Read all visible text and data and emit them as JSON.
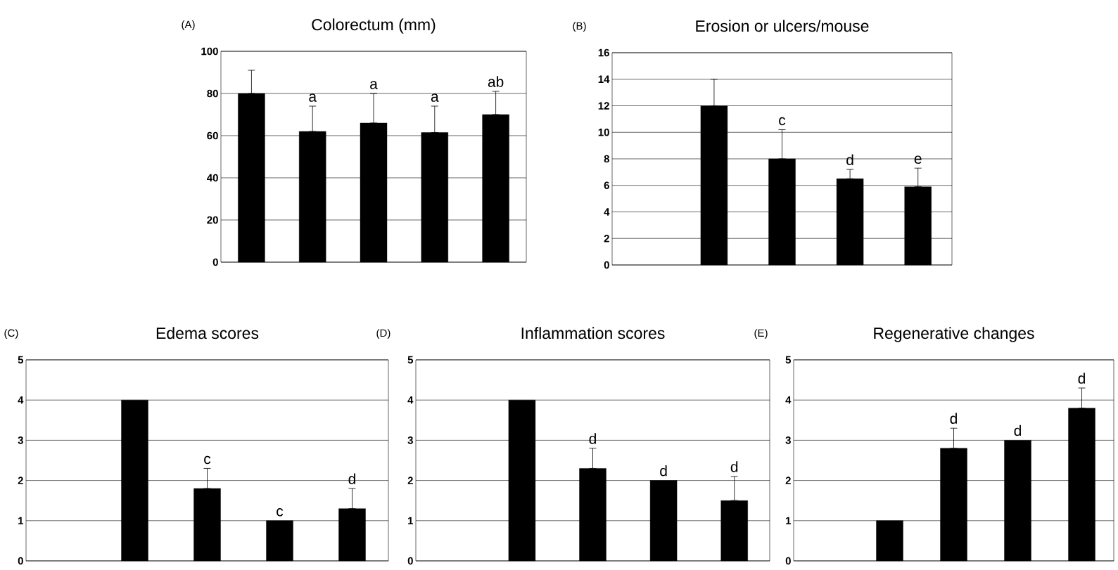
{
  "chart_data": [
    {
      "type": "bar",
      "title": "Colorectum (mm)",
      "annotations": [
        "(A)"
      ],
      "categories": [
        null,
        null,
        null,
        null,
        null
      ],
      "values": [
        80,
        62,
        66,
        61.5,
        70
      ],
      "errors": [
        [
          80,
          91
        ],
        [
          62,
          74
        ],
        [
          66,
          80
        ],
        [
          61.5,
          74
        ],
        [
          70,
          81
        ]
      ],
      "value_labels": [
        null,
        "a",
        "a",
        "a",
        "ab"
      ],
      "color": "#000000",
      "ylim": [
        0,
        100
      ],
      "yticks": [
        0,
        20,
        40,
        60,
        80,
        100
      ],
      "grid": "y"
    },
    {
      "type": "bar",
      "title": "Erosion or ulcers/mouse",
      "annotations": [
        "(B)"
      ],
      "categories": [
        null,
        null,
        null,
        null,
        null
      ],
      "values": [
        null,
        12,
        8,
        6.5,
        5.9
      ],
      "errors": [
        null,
        [
          12,
          14
        ],
        [
          8,
          10.2
        ],
        [
          6.5,
          7.2
        ],
        [
          5.9,
          7.3
        ]
      ],
      "value_labels": [
        null,
        null,
        "c",
        "d",
        "e"
      ],
      "color": "#000000",
      "ylim": [
        0,
        16
      ],
      "yticks": [
        0,
        2,
        4,
        6,
        8,
        10,
        12,
        14,
        16
      ],
      "grid": "y"
    },
    {
      "type": "bar",
      "title": "Edema scores",
      "annotations": [
        "(C)"
      ],
      "categories": [
        null,
        null,
        null,
        null,
        null
      ],
      "values": [
        null,
        4,
        1.8,
        1,
        1.3
      ],
      "errors": [
        null,
        null,
        [
          1.8,
          2.3
        ],
        null,
        [
          1.3,
          1.8
        ]
      ],
      "value_labels": [
        null,
        null,
        "c",
        "c",
        "d"
      ],
      "color": "#000000",
      "ylim": [
        0,
        5
      ],
      "yticks": [
        0,
        1,
        2,
        3,
        4,
        5
      ],
      "grid": "y"
    },
    {
      "type": "bar",
      "title": "Inflammation scores",
      "annotations": [
        "(D)"
      ],
      "categories": [
        null,
        null,
        null,
        null,
        null
      ],
      "values": [
        null,
        4,
        2.3,
        2,
        1.5
      ],
      "errors": [
        null,
        null,
        [
          2.3,
          2.8
        ],
        null,
        [
          1.5,
          2.1
        ]
      ],
      "value_labels": [
        null,
        null,
        "d",
        "d",
        "d"
      ],
      "color": "#000000",
      "ylim": [
        0,
        5
      ],
      "yticks": [
        0,
        1,
        2,
        3,
        4,
        5
      ],
      "grid": "y"
    },
    {
      "type": "bar",
      "title": "Regenerative changes",
      "annotations": [
        "(E)"
      ],
      "categories": [
        null,
        null,
        null,
        null,
        null
      ],
      "values": [
        null,
        1,
        2.8,
        3,
        3.8
      ],
      "errors": [
        null,
        null,
        [
          2.8,
          3.3
        ],
        null,
        [
          3.8,
          4.3
        ]
      ],
      "value_labels": [
        null,
        null,
        "d",
        "d",
        "d"
      ],
      "color": "#000000",
      "ylim": [
        0,
        5
      ],
      "yticks": [
        0,
        1,
        2,
        3,
        4,
        5
      ],
      "grid": "y"
    }
  ]
}
